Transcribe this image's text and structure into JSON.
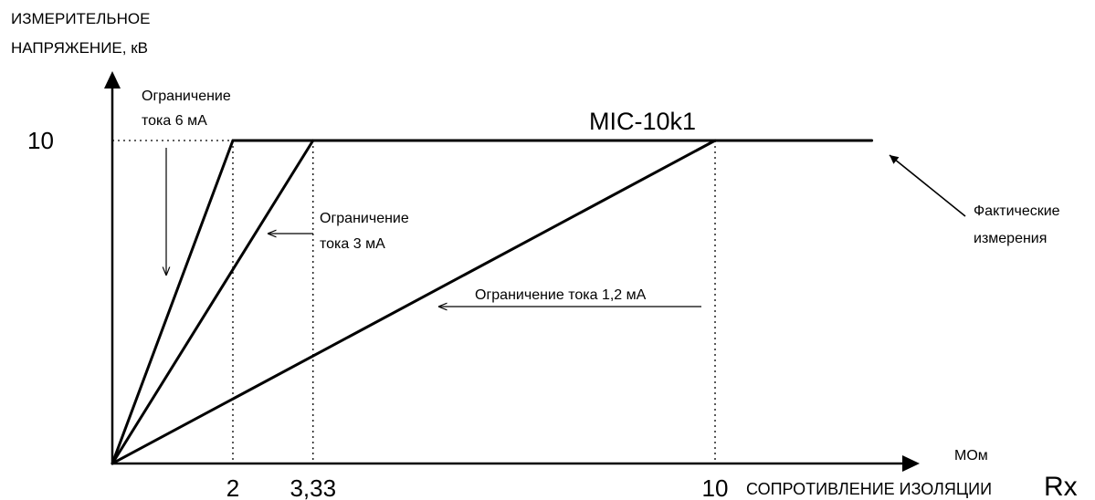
{
  "chart_data": {
    "type": "line",
    "title": "MIC-10k1",
    "ylabel_lines": [
      "ИЗМЕРИТЕЛЬНОЕ",
      "НАПРЯЖЕНИЕ, кВ"
    ],
    "xlabel": "СОПРОТИВЛЕНИЕ ИЗОЛЯЦИИ",
    "xlabel_symbol": "Rx",
    "x_unit": "МОм",
    "y_ticks": [
      {
        "value": 10,
        "label": "10"
      }
    ],
    "x_ticks": [
      {
        "value": 2,
        "label": "2"
      },
      {
        "value": 3.33,
        "label": "3,33"
      },
      {
        "value": 10,
        "label": "10"
      }
    ],
    "xlim": [
      0,
      14.1
    ],
    "ylim": [
      0,
      10
    ],
    "series": [
      {
        "points": [
          [
            0,
            0
          ],
          [
            2,
            10
          ]
        ]
      },
      {
        "points": [
          [
            0,
            0
          ],
          [
            3.33,
            10
          ]
        ]
      },
      {
        "points": [
          [
            0,
            0
          ],
          [
            10,
            10
          ]
        ]
      },
      {
        "points": [
          [
            2,
            10
          ],
          [
            12.6,
            10
          ]
        ]
      }
    ],
    "annotations": {
      "limit_6ma": [
        "Ограничение",
        "тока 6 мА"
      ],
      "limit_3ma": [
        "Ограничение",
        "тока 3 мА"
      ],
      "limit_1_2ma": "Ограничение тока 1,2 мА",
      "actual": [
        "Фактические",
        "измерения"
      ]
    }
  }
}
